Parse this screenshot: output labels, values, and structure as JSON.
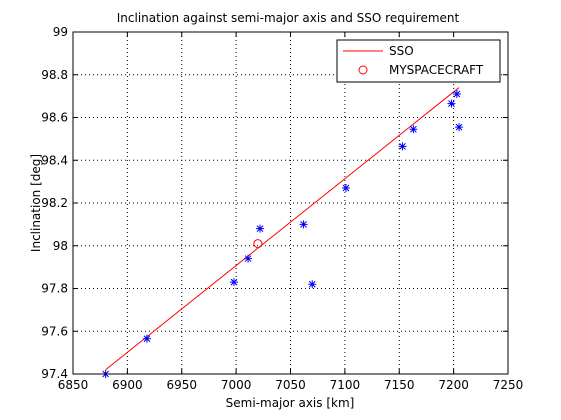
{
  "chart_data": {
    "type": "scatter",
    "title": "Inclination against semi-major axis and SSO requirement",
    "xlabel": "Semi-major axis [km]",
    "ylabel": "Inclination [deg]",
    "xlim": [
      6850,
      7250
    ],
    "ylim": [
      97.4,
      99
    ],
    "xticks": [
      6850,
      6900,
      6950,
      7000,
      7050,
      7100,
      7150,
      7200,
      7250
    ],
    "yticks": [
      97.4,
      97.6,
      97.8,
      98,
      98.2,
      98.4,
      98.6,
      98.8,
      99
    ],
    "xtick_labels": [
      "6850",
      "6900",
      "6950",
      "7000",
      "7050",
      "7100",
      "7150",
      "7200",
      "7250"
    ],
    "ytick_labels": [
      "97.4",
      "97.6",
      "97.8",
      "98",
      "98.2",
      "98.4",
      "98.6",
      "98.8",
      "99"
    ],
    "grid": true,
    "legend_position": "top-right",
    "series": [
      {
        "name": "SSO",
        "kind": "line",
        "color": "#ff0000",
        "x": [
          6880,
          7205
        ],
        "y": [
          97.42,
          98.74
        ]
      },
      {
        "name": "MYSPACECRAFT",
        "kind": "circle-marker",
        "color": "#ff0000",
        "x": [
          7020
        ],
        "y": [
          98.01
        ]
      },
      {
        "kind": "star-marker",
        "color": "#0000ff",
        "x": [
          6880,
          6918,
          6998,
          7011,
          7022,
          7062,
          7070,
          7101,
          7153,
          7163,
          7198,
          7203,
          7205
        ],
        "y": [
          97.4,
          97.565,
          97.83,
          97.94,
          98.08,
          98.1,
          97.82,
          98.27,
          98.465,
          98.545,
          98.665,
          98.71,
          98.555
        ]
      }
    ]
  }
}
